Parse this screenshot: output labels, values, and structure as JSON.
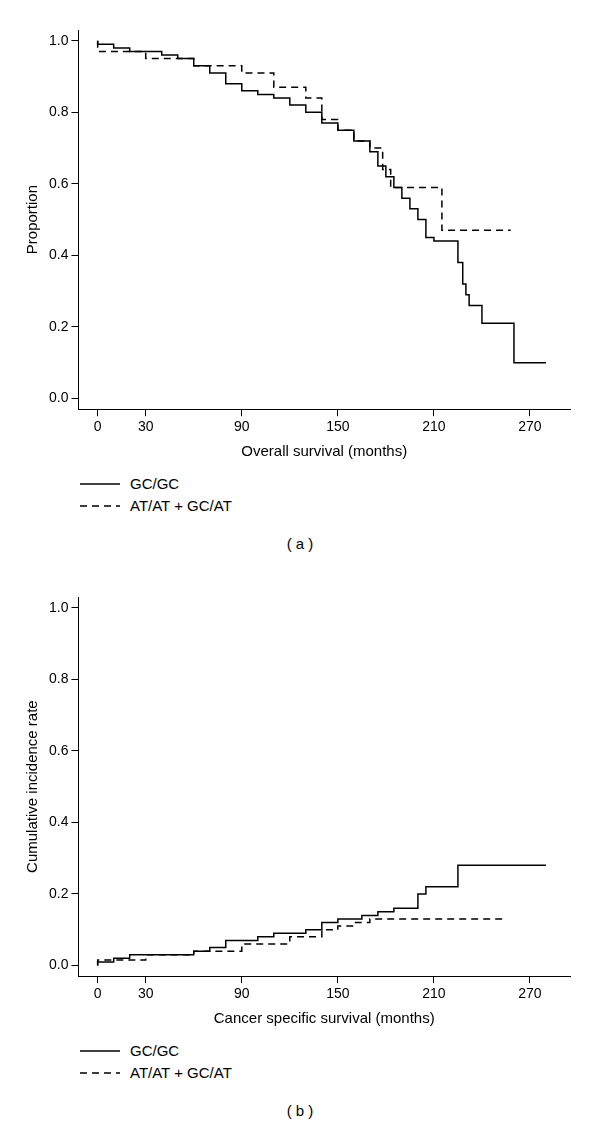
{
  "chart_data": [
    {
      "type": "line",
      "caption": "( a )",
      "x_label": "Overall survival (months)",
      "y_label": "Proportion",
      "xlim": [
        -12,
        295
      ],
      "xticks": [
        0,
        30,
        90,
        150,
        210,
        270
      ],
      "ylim": [
        -0.03,
        1.03
      ],
      "yticks": [
        {
          "value": 0,
          "label": "0.0"
        },
        {
          "value": 0.2,
          "label": "0.2"
        },
        {
          "value": 0.4,
          "label": "0.4"
        },
        {
          "value": 0.6,
          "label": "0.6"
        },
        {
          "value": 0.8,
          "label": "0.8"
        },
        {
          "value": 1,
          "label": "1.0"
        }
      ],
      "grid": false,
      "legend": "bottom left",
      "series": [
        {
          "name": "GC/GC",
          "color": "#000000",
          "line_style": "solid",
          "x": [
            0,
            10,
            20,
            40,
            50,
            60,
            70,
            80,
            90,
            100,
            110,
            120,
            130,
            140,
            150,
            160,
            170,
            175,
            180,
            185,
            190,
            195,
            200,
            205,
            210,
            225,
            228,
            230,
            232,
            240,
            260,
            272,
            280
          ],
          "values": [
            1.0,
            0.99,
            0.98,
            0.97,
            0.96,
            0.95,
            0.93,
            0.91,
            0.88,
            0.86,
            0.85,
            0.84,
            0.82,
            0.8,
            0.77,
            0.75,
            0.72,
            0.69,
            0.65,
            0.62,
            0.59,
            0.56,
            0.53,
            0.5,
            0.45,
            0.44,
            0.38,
            0.32,
            0.29,
            0.26,
            0.21,
            0.1,
            0.1
          ]
        },
        {
          "name": "AT/AT + GC/AT",
          "color": "#000000",
          "line_style": "dashed",
          "x": [
            0,
            30,
            60,
            90,
            110,
            130,
            140,
            150,
            160,
            170,
            178,
            183,
            215,
            230,
            258
          ],
          "values": [
            1.0,
            0.97,
            0.95,
            0.93,
            0.91,
            0.87,
            0.84,
            0.78,
            0.75,
            0.72,
            0.7,
            0.64,
            0.59,
            0.47,
            0.47
          ]
        }
      ]
    },
    {
      "type": "line",
      "caption": "( b )",
      "x_label": "Cancer specific survival (months)",
      "y_label": "Cumulative incidence rate",
      "xlim": [
        -12,
        295
      ],
      "xticks": [
        0,
        30,
        90,
        150,
        210,
        270
      ],
      "ylim": [
        -0.03,
        1.03
      ],
      "yticks": [
        {
          "value": 0,
          "label": "0.0"
        },
        {
          "value": 0.2,
          "label": "0.2"
        },
        {
          "value": 0.4,
          "label": "0.4"
        },
        {
          "value": 0.6,
          "label": "0.6"
        },
        {
          "value": 0.8,
          "label": "0.8"
        },
        {
          "value": 1,
          "label": "1.0"
        }
      ],
      "grid": false,
      "legend": "bottom left",
      "series": [
        {
          "name": "GC/GC",
          "color": "#000000",
          "line_style": "solid",
          "x": [
            0,
            10,
            20,
            60,
            70,
            80,
            100,
            110,
            130,
            140,
            150,
            165,
            175,
            185,
            200,
            205,
            225,
            260,
            280
          ],
          "values": [
            0,
            0.01,
            0.02,
            0.03,
            0.04,
            0.05,
            0.07,
            0.08,
            0.09,
            0.1,
            0.12,
            0.13,
            0.14,
            0.15,
            0.16,
            0.2,
            0.22,
            0.28,
            0.28
          ]
        },
        {
          "name": "AT/AT + GC/AT",
          "color": "#000000",
          "line_style": "dashed",
          "x": [
            0,
            30,
            60,
            90,
            120,
            140,
            150,
            160,
            170,
            180,
            255
          ],
          "values": [
            0,
            0.015,
            0.03,
            0.04,
            0.06,
            0.08,
            0.1,
            0.11,
            0.12,
            0.13,
            0.13
          ]
        }
      ]
    }
  ]
}
